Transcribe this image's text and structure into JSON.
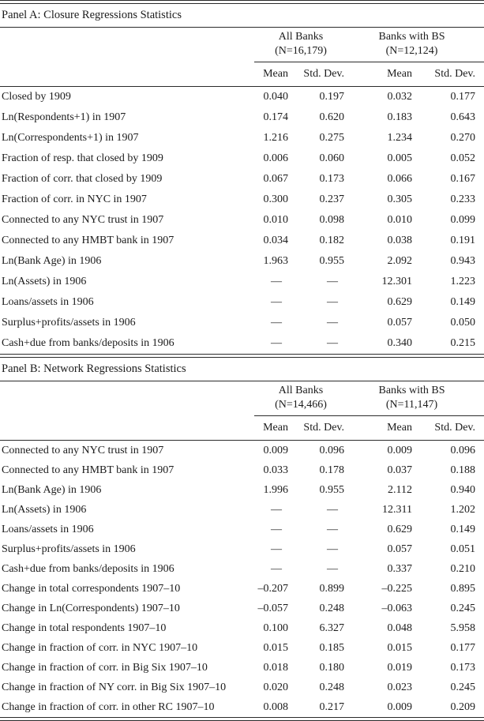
{
  "panels": [
    {
      "title": "Panel A: Closure Regressions Statistics",
      "groups": [
        {
          "line1": "All Banks",
          "line2": "(N=16,179)"
        },
        {
          "line1": "Banks with BS",
          "line2": "(N=12,124)"
        }
      ],
      "col_headers": [
        "Mean",
        "Std. Dev.",
        "Mean",
        "Std. Dev."
      ],
      "rows": [
        {
          "label": "Closed by 1909",
          "values": [
            "0.040",
            "0.197",
            "0.032",
            "0.177"
          ]
        },
        {
          "label": "Ln(Respondents+1) in 1907",
          "values": [
            "0.174",
            "0.620",
            "0.183",
            "0.643"
          ]
        },
        {
          "label": "Ln(Correspondents+1) in 1907",
          "values": [
            "1.216",
            "0.275",
            "1.234",
            "0.270"
          ]
        },
        {
          "label": "Fraction of resp. that closed by 1909",
          "values": [
            "0.006",
            "0.060",
            "0.005",
            "0.052"
          ]
        },
        {
          "label": "Fraction of corr. that closed by 1909",
          "values": [
            "0.067",
            "0.173",
            "0.066",
            "0.167"
          ]
        },
        {
          "label": "Fraction of corr. in NYC in 1907",
          "values": [
            "0.300",
            "0.237",
            "0.305",
            "0.233"
          ]
        },
        {
          "label": "Connected to any NYC trust in 1907",
          "values": [
            "0.010",
            "0.098",
            "0.010",
            "0.099"
          ]
        },
        {
          "label": "Connected to any HMBT bank in 1907",
          "values": [
            "0.034",
            "0.182",
            "0.038",
            "0.191"
          ]
        },
        {
          "label": "Ln(Bank Age) in 1906",
          "values": [
            "1.963",
            "0.955",
            "2.092",
            "0.943"
          ]
        },
        {
          "label": "Ln(Assets) in 1906",
          "values": [
            "—",
            "—",
            "12.301",
            "1.223"
          ]
        },
        {
          "label": "Loans/assets in 1906",
          "values": [
            "—",
            "—",
            "0.629",
            "0.149"
          ]
        },
        {
          "label": "Surplus+profits/assets in 1906",
          "values": [
            "—",
            "—",
            "0.057",
            "0.050"
          ]
        },
        {
          "label": "Cash+due from banks/deposits in 1906",
          "values": [
            "—",
            "—",
            "0.340",
            "0.215"
          ]
        }
      ]
    },
    {
      "title": "Panel B: Network Regressions Statistics",
      "groups": [
        {
          "line1": "All Banks",
          "line2": "(N=14,466)"
        },
        {
          "line1": "Banks with BS",
          "line2": "(N=11,147)"
        }
      ],
      "col_headers": [
        "Mean",
        "Std. Dev.",
        "Mean",
        "Std. Dev."
      ],
      "rows": [
        {
          "label": "Connected to any NYC trust in 1907",
          "values": [
            "0.009",
            "0.096",
            "0.009",
            "0.096"
          ]
        },
        {
          "label": "Connected to any HMBT bank in 1907",
          "values": [
            "0.033",
            "0.178",
            "0.037",
            "0.188"
          ]
        },
        {
          "label": "Ln(Bank Age) in 1906",
          "values": [
            "1.996",
            "0.955",
            "2.112",
            "0.940"
          ]
        },
        {
          "label": "Ln(Assets) in 1906",
          "values": [
            "—",
            "—",
            "12.311",
            "1.202"
          ]
        },
        {
          "label": "Loans/assets in 1906",
          "values": [
            "—",
            "—",
            "0.629",
            "0.149"
          ]
        },
        {
          "label": "Surplus+profits/assets in 1906",
          "values": [
            "—",
            "—",
            "0.057",
            "0.051"
          ]
        },
        {
          "label": "Cash+due from banks/deposits in 1906",
          "values": [
            "—",
            "—",
            "0.337",
            "0.210"
          ]
        },
        {
          "label": "Change in total correspondents 1907–10",
          "values": [
            "–0.207",
            "0.899",
            "–0.225",
            "0.895"
          ]
        },
        {
          "label": "Change in Ln(Correspondents) 1907–10",
          "values": [
            "–0.057",
            "0.248",
            "–0.063",
            "0.245"
          ]
        },
        {
          "label": "Change in total respondents 1907–10",
          "values": [
            "0.100",
            "6.327",
            "0.048",
            "5.958"
          ]
        },
        {
          "label": "Change in fraction of corr. in NYC 1907–10",
          "values": [
            "0.015",
            "0.185",
            "0.015",
            "0.177"
          ]
        },
        {
          "label": "Change in fraction of corr. in Big Six 1907–10",
          "values": [
            "0.018",
            "0.180",
            "0.019",
            "0.173"
          ]
        },
        {
          "label": "Change in fraction of NY corr. in Big Six 1907–10",
          "values": [
            "0.020",
            "0.248",
            "0.023",
            "0.245"
          ]
        },
        {
          "label": "Change in fraction of corr. in other RC 1907–10",
          "values": [
            "0.008",
            "0.217",
            "0.009",
            "0.209"
          ]
        }
      ]
    }
  ]
}
